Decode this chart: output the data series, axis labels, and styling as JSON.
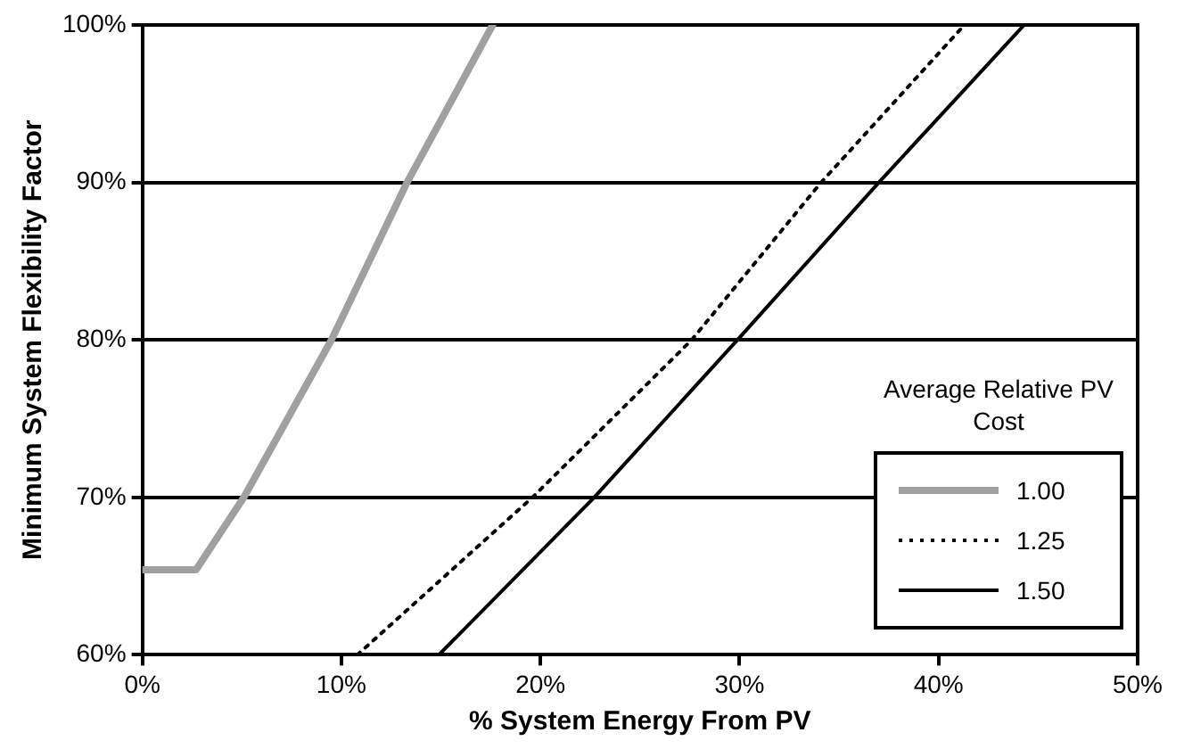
{
  "chart_data": {
    "type": "line",
    "xlabel": "% System Energy From PV",
    "ylabel": "Minimum System Flexibility Factor",
    "legend_title": "Average Relative PV Cost",
    "xlim": [
      0,
      50
    ],
    "xticks": [
      {
        "value": 0,
        "label": "0%"
      },
      {
        "value": 10,
        "label": "10%"
      },
      {
        "value": 20,
        "label": "20%"
      },
      {
        "value": 30,
        "label": "30%"
      },
      {
        "value": 40,
        "label": "40%"
      },
      {
        "value": 50,
        "label": "50%"
      }
    ],
    "ylim": [
      60,
      100
    ],
    "yticks": [
      {
        "value": 60,
        "label": "60%"
      },
      {
        "value": 70,
        "label": "70%"
      },
      {
        "value": 80,
        "label": "80%"
      },
      {
        "value": 90,
        "label": "90%"
      },
      {
        "value": 100,
        "label": "100%"
      }
    ],
    "grid": "y",
    "legend": "bottom right",
    "marker": "none",
    "series": [
      {
        "name": "1.00",
        "color": "#a0a0a0",
        "line_style": "solid",
        "x": [
          0,
          2.7,
          5.1,
          9.5,
          13.3,
          17.6
        ],
        "values": [
          65.4,
          65.4,
          70,
          80,
          90,
          100
        ]
      },
      {
        "name": "1.25",
        "color": "#000000",
        "line_style": "dotted",
        "x": [
          10.8,
          19.6,
          27.6,
          34.1,
          41.3
        ],
        "values": [
          60,
          70,
          80,
          90,
          100
        ]
      },
      {
        "name": "1.50",
        "color": "#000000",
        "line_style": "solid",
        "x": [
          14.9,
          22.7,
          29.9,
          37.0,
          44.3
        ],
        "values": [
          60,
          70,
          80,
          90,
          100
        ]
      }
    ]
  }
}
